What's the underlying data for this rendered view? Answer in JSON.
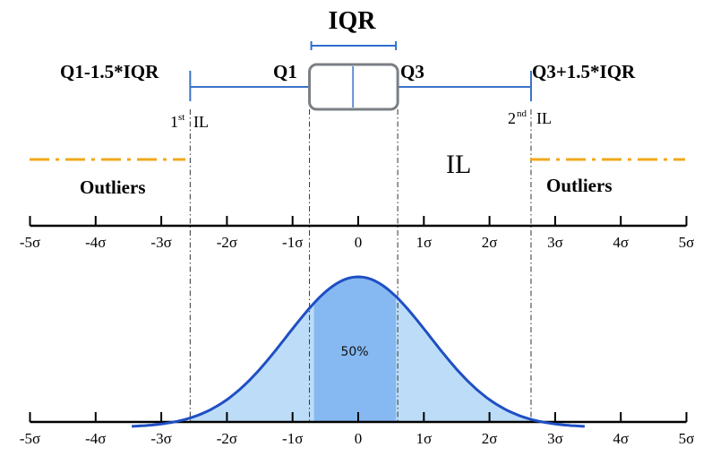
{
  "title": "IQR",
  "labels": {
    "lower_fence": "Q1-1.5*IQR",
    "q1": "Q1",
    "q3": "Q3",
    "upper_fence": "Q3+1.5*IQR",
    "il_left_num": "1",
    "il_left_sup": "st",
    "il_left_word": "IL",
    "il_right_num": "2",
    "il_right_sup": "nd",
    "il_right_word": "IL",
    "il_center": "IL",
    "outliers_left": "Outliers",
    "outliers_right": "Outliers",
    "center_percent": "50%"
  },
  "axis": {
    "ticks": [
      -5,
      -4,
      -3,
      -2,
      -1,
      0,
      1,
      2,
      3,
      4,
      5
    ],
    "tick_labels": [
      "-5σ",
      "-4σ",
      "-3σ",
      "-2σ",
      "-1σ",
      "0",
      "1σ",
      "2σ",
      "3σ",
      "4σ",
      "5σ"
    ]
  },
  "boxplot": {
    "q1_sigma": -0.6745,
    "median_sigma": -0.08,
    "q3_sigma": 0.5745,
    "lower_fence_sigma": -2.56,
    "upper_fence_sigma": 2.66
  },
  "colors": {
    "whisker": "#3a72c8",
    "box_stroke": "#7a7f85",
    "outlier_line": "#f0a81a",
    "curve": "#1f4fc4",
    "fill_outer": "#bcdcf8",
    "fill_inner": "#86b9f2",
    "iqr_bracket": "#2f6fd0"
  }
}
